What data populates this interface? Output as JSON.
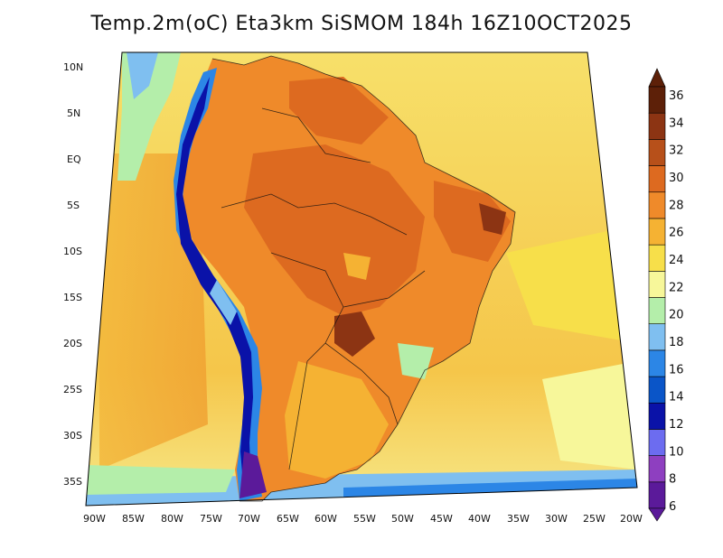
{
  "title": "Temp.2m(oC) Eta3km SiSMOM 184h 16Z10OCT2025",
  "map": {
    "variable": "2m temperature",
    "units": "oC",
    "region": "South America",
    "projection": "lambert-like conic",
    "lat_ticks": [
      "10N",
      "5N",
      "EQ",
      "5S",
      "10S",
      "15S",
      "20S",
      "25S",
      "30S",
      "35S"
    ],
    "lon_ticks": [
      "90W",
      "85W",
      "80W",
      "75W",
      "70W",
      "65W",
      "60W",
      "55W",
      "50W",
      "45W",
      "40W",
      "35W",
      "30W",
      "25W",
      "20W"
    ]
  },
  "colorbar": {
    "levels": [
      6,
      8,
      10,
      12,
      14,
      16,
      18,
      20,
      22,
      24,
      26,
      28,
      30,
      32,
      34,
      36
    ],
    "labels": [
      "36",
      "34",
      "32",
      "30",
      "28",
      "26",
      "24",
      "22",
      "20",
      "18",
      "16",
      "14",
      "12",
      "10",
      "8",
      "6"
    ],
    "colors": [
      "#5b1a9a",
      "#8e3fc0",
      "#6c6cf0",
      "#0a12a8",
      "#0a55c8",
      "#2c86e6",
      "#7fbff0",
      "#b4eeaa",
      "#f7f79a",
      "#f7df4a",
      "#f5b233",
      "#ef8a2a",
      "#dd6a20",
      "#b7501a",
      "#8c3413",
      "#5d2008"
    ]
  }
}
